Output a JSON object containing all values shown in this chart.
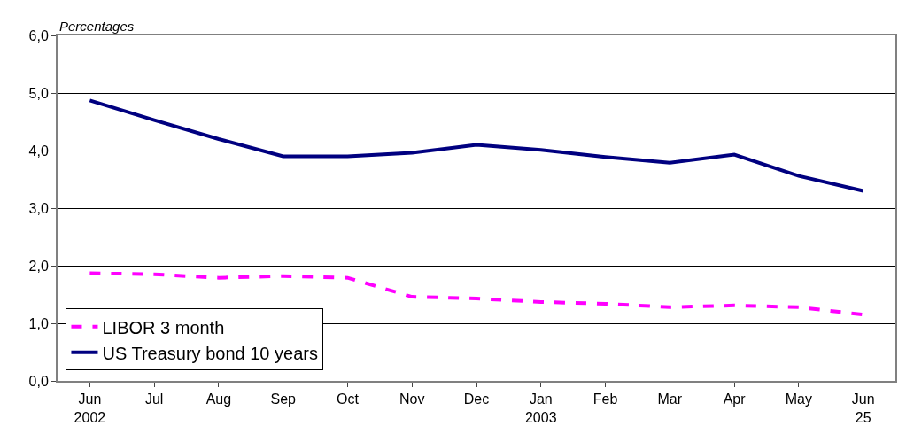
{
  "chart_data": {
    "type": "line",
    "ylabel": "Percentages",
    "categories": [
      "Jun\n2002",
      "Jul",
      "Aug",
      "Sep",
      "Oct",
      "Nov",
      "Dec",
      "Jan\n2003",
      "Feb",
      "Mar",
      "Apr",
      "May",
      "Jun\n25"
    ],
    "series": [
      {
        "name": "LIBOR 3 month",
        "color": "#ff00ff",
        "line_style": "dashed",
        "values": [
          1.87,
          1.85,
          1.79,
          1.82,
          1.79,
          1.46,
          1.43,
          1.37,
          1.34,
          1.28,
          1.31,
          1.28,
          1.15
        ]
      },
      {
        "name": "US Treasury bond 10 years",
        "color": "#000080",
        "line_style": "solid",
        "values": [
          4.87,
          4.53,
          4.2,
          3.9,
          3.9,
          3.96,
          4.1,
          4.01,
          3.89,
          3.79,
          3.93,
          3.56,
          3.3
        ]
      }
    ],
    "ylim": [
      0,
      6
    ],
    "yticks": [
      {
        "value": 0,
        "label": "0,0"
      },
      {
        "value": 1,
        "label": "1,0"
      },
      {
        "value": 2,
        "label": "2,0"
      },
      {
        "value": 3,
        "label": "3,0"
      },
      {
        "value": 4,
        "label": "4,0"
      },
      {
        "value": 5,
        "label": "5,0"
      },
      {
        "value": 6,
        "label": "6,0"
      }
    ],
    "grid": "y",
    "legend": "bottom left",
    "marker": "none"
  }
}
